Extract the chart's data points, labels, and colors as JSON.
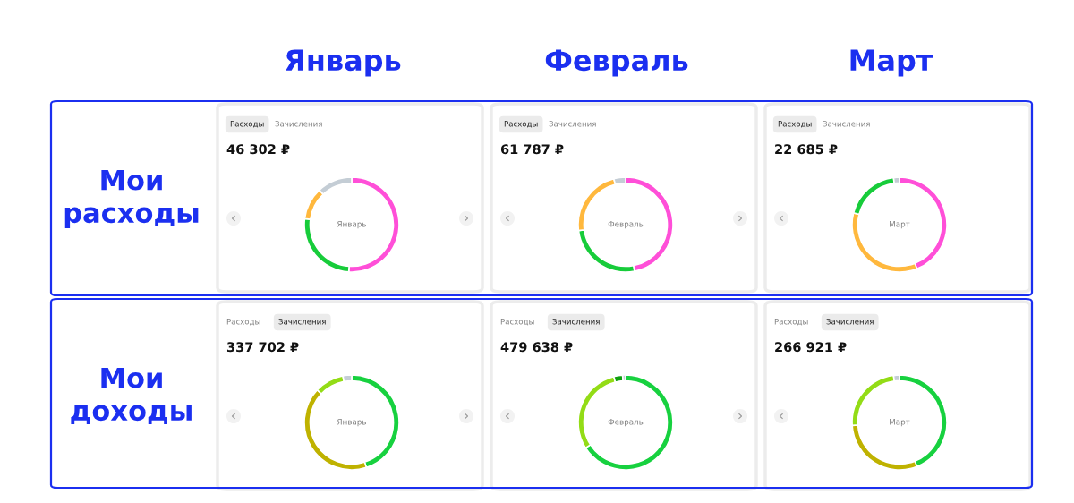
{
  "chart_data": [
    {
      "type": "donut",
      "title": "46 302 ₽",
      "annotations": [
        "Расходы",
        "Зачисления",
        "Январь",
        "Январь",
        "Мои расходы"
      ],
      "categories": [
        null,
        null,
        null,
        null
      ],
      "values": [
        51,
        26,
        11,
        12
      ],
      "colors": [
        "#ff4fd8",
        "#17cc3a",
        "#ffb83d",
        "#c4cdd5"
      ]
    },
    {
      "type": "donut",
      "title": "61 787 ₽",
      "annotations": [
        "Расходы",
        "Зачисления",
        "Февраль",
        "Февраль"
      ],
      "categories": [
        null,
        null,
        null,
        null
      ],
      "values": [
        47,
        26,
        23,
        4
      ],
      "colors": [
        "#ff4fd8",
        "#17cc3a",
        "#ffb83d",
        "#c4cdd5"
      ]
    },
    {
      "type": "donut",
      "title": "22 685 ₽",
      "annotations": [
        "Расходы",
        "Зачисления",
        "Март",
        "Март"
      ],
      "categories": [
        null,
        null,
        null,
        null
      ],
      "values": [
        44,
        35,
        19,
        2
      ],
      "colors": [
        "#ff4fd8",
        "#ffb83d",
        "#17cc3a",
        "#c4cdd5"
      ]
    },
    {
      "type": "donut",
      "title": "337 702 ₽",
      "annotations": [
        "Расходы",
        "Зачисления",
        "Январь",
        "Мои доходы"
      ],
      "categories": [
        null,
        null,
        null,
        null
      ],
      "values": [
        45,
        42,
        10,
        3
      ],
      "colors": [
        "#17d13f",
        "#bfb200",
        "#93dc16",
        "#c4cdd5"
      ]
    },
    {
      "type": "donut",
      "title": "479 638 ₽",
      "annotations": [
        "Расходы",
        "Зачисления",
        "Февраль"
      ],
      "categories": [
        null,
        null,
        null,
        null
      ],
      "values": [
        66,
        30,
        3,
        1
      ],
      "colors": [
        "#17d13f",
        "#93dc16",
        "#0f9e10",
        "#c4cdd5"
      ]
    },
    {
      "type": "donut",
      "title": "266 921 ₽",
      "annotations": [
        "Расходы",
        "Зачисления",
        "Март"
      ],
      "categories": [
        null,
        null,
        null,
        null
      ],
      "values": [
        44,
        30,
        24,
        2
      ],
      "colors": [
        "#17d13f",
        "#bfb200",
        "#93dc16",
        "#c4cdd5"
      ]
    }
  ]
}
